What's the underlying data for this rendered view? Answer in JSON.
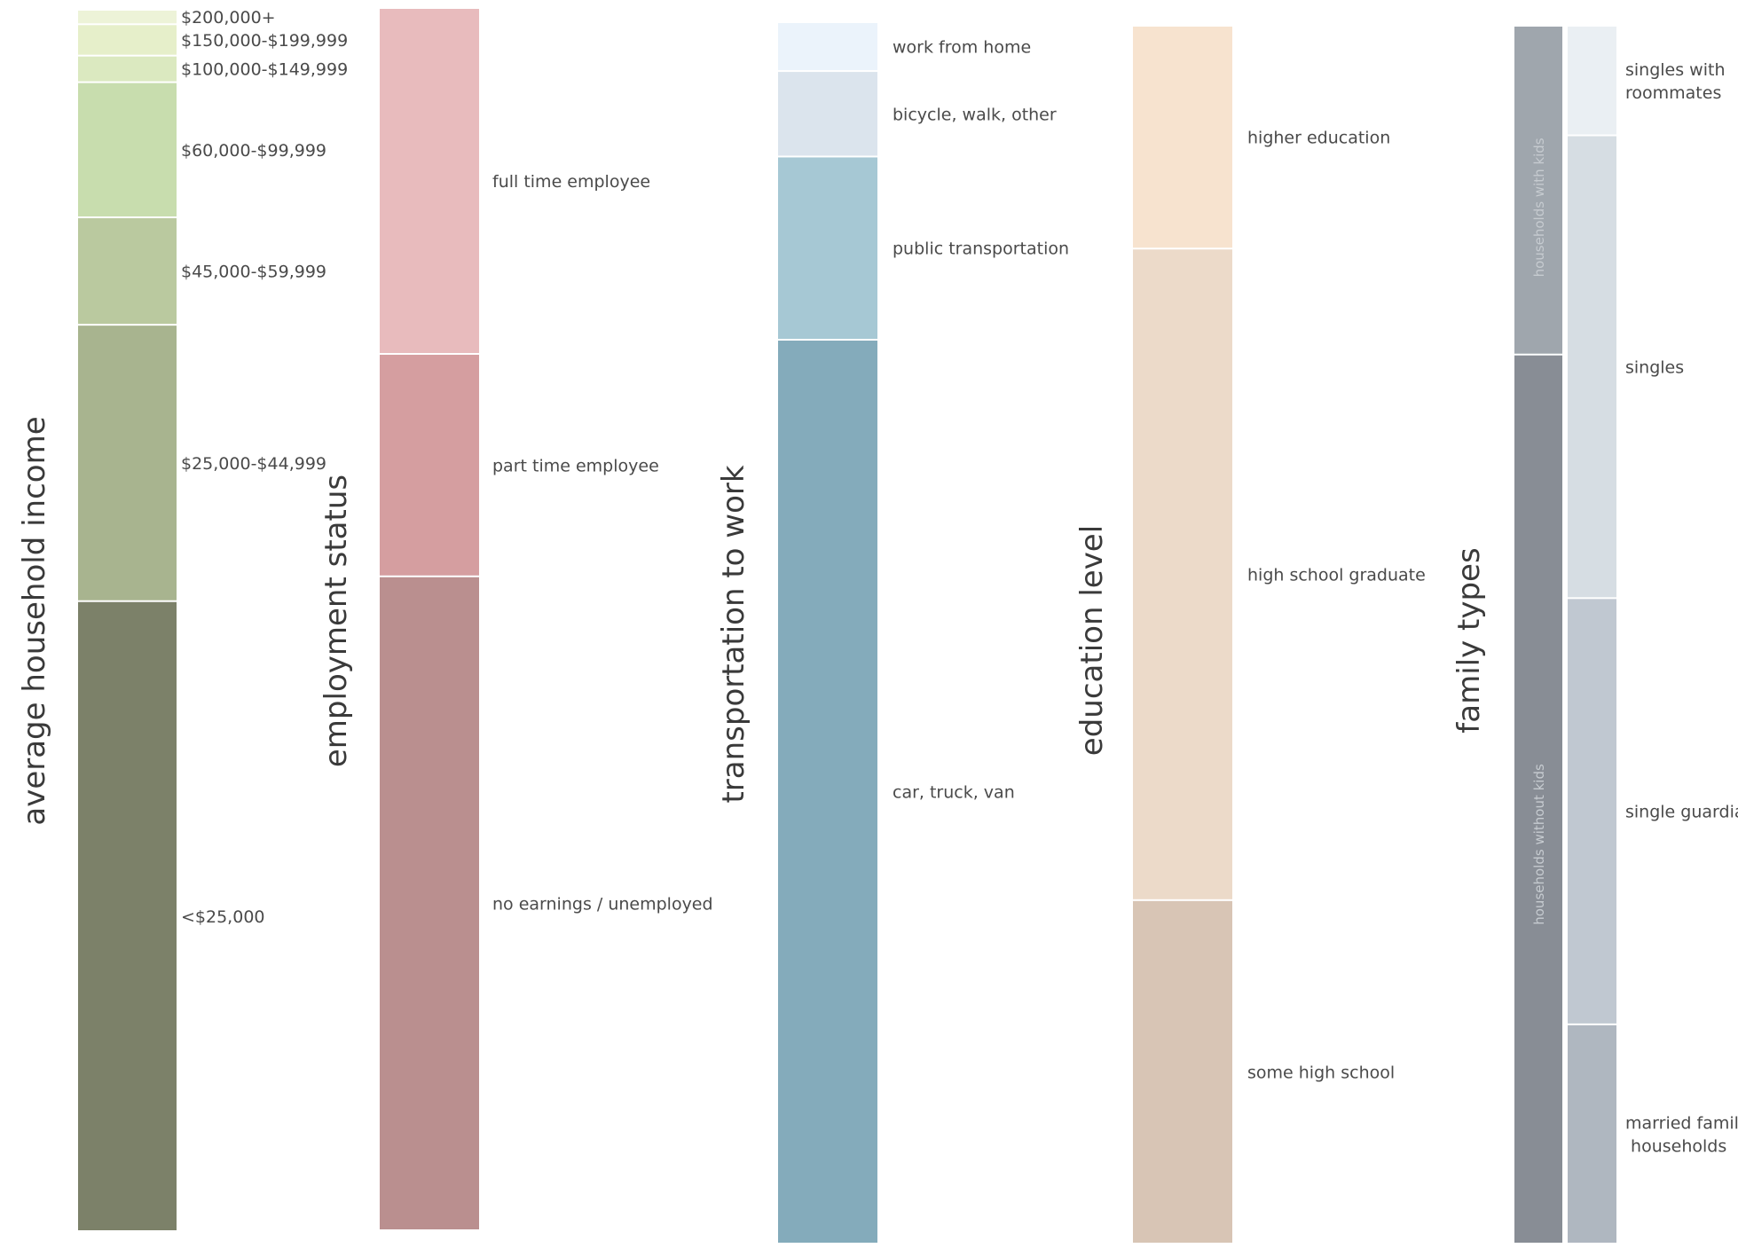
{
  "chart_data": [
    {
      "type": "stacked-bar",
      "title": "average household income",
      "segments": [
        {
          "label": "$200,000+",
          "value": 1.2,
          "color": "#edf3d8"
        },
        {
          "label": "$150,000-$199,999",
          "value": 2.6,
          "color": "#e6efca"
        },
        {
          "label": "$100,000-$149,999",
          "value": 2.2,
          "color": "#dbe9c0"
        },
        {
          "label": "$60,000-$99,999",
          "value": 11.2,
          "color": "#c8ddae"
        },
        {
          "label": "$45,000-$59,999",
          "value": 8.9,
          "color": "#bac99f"
        },
        {
          "label": "$25,000-$44,999",
          "value": 22.9,
          "color": "#a8b48f"
        },
        {
          "label": "<$25,000",
          "value": 52.2,
          "color": "#7c8169"
        }
      ]
    },
    {
      "type": "stacked-bar",
      "title": "employment status",
      "segments": [
        {
          "label": "full time employee",
          "value": 28.3,
          "color": "#e8bbbd"
        },
        {
          "label": "part time employee",
          "value": 18.2,
          "color": "#d59ea0"
        },
        {
          "label": "no earnings / unemployed",
          "value": 53.5,
          "color": "#ba8f8f"
        }
      ]
    },
    {
      "type": "stacked-bar",
      "title": "transportation to work",
      "segments": [
        {
          "label": "work from home",
          "value": 4.0,
          "color": "#ebf3fb"
        },
        {
          "label": "bicycle, walk, other",
          "value": 7.0,
          "color": "#dbe4ed"
        },
        {
          "label": "public transportation",
          "value": 15.0,
          "color": "#a6c8d4"
        },
        {
          "label": "car, truck, van",
          "value": 74.0,
          "color": "#84abbb"
        }
      ]
    },
    {
      "type": "stacked-bar",
      "title": "education level",
      "segments": [
        {
          "label": "higher education",
          "value": 18.3,
          "color": "#f7e3cf"
        },
        {
          "label": "high school graduate",
          "value": 53.5,
          "color": "#ecdac9"
        },
        {
          "label": "some high school",
          "value": 28.2,
          "color": "#d8c5b5"
        }
      ]
    },
    {
      "type": "stacked-bar",
      "title": "family types",
      "groups": [
        {
          "label": "households with kids",
          "value": 27.0,
          "color": "#9fa6ad"
        },
        {
          "label": "households without kids",
          "value": 73.0,
          "color": "#888d95"
        }
      ],
      "segments": [
        {
          "label": "singles with roommates",
          "value": 9.0,
          "color": "#eaeff3"
        },
        {
          "label": "singles",
          "value": 38.0,
          "color": "#d6dde3"
        },
        {
          "label": "single guardian",
          "value": 35.0,
          "color": "#c0c8d1"
        },
        {
          "label": "married family households",
          "value": 18.0,
          "color": "#afb7c0"
        }
      ]
    }
  ]
}
